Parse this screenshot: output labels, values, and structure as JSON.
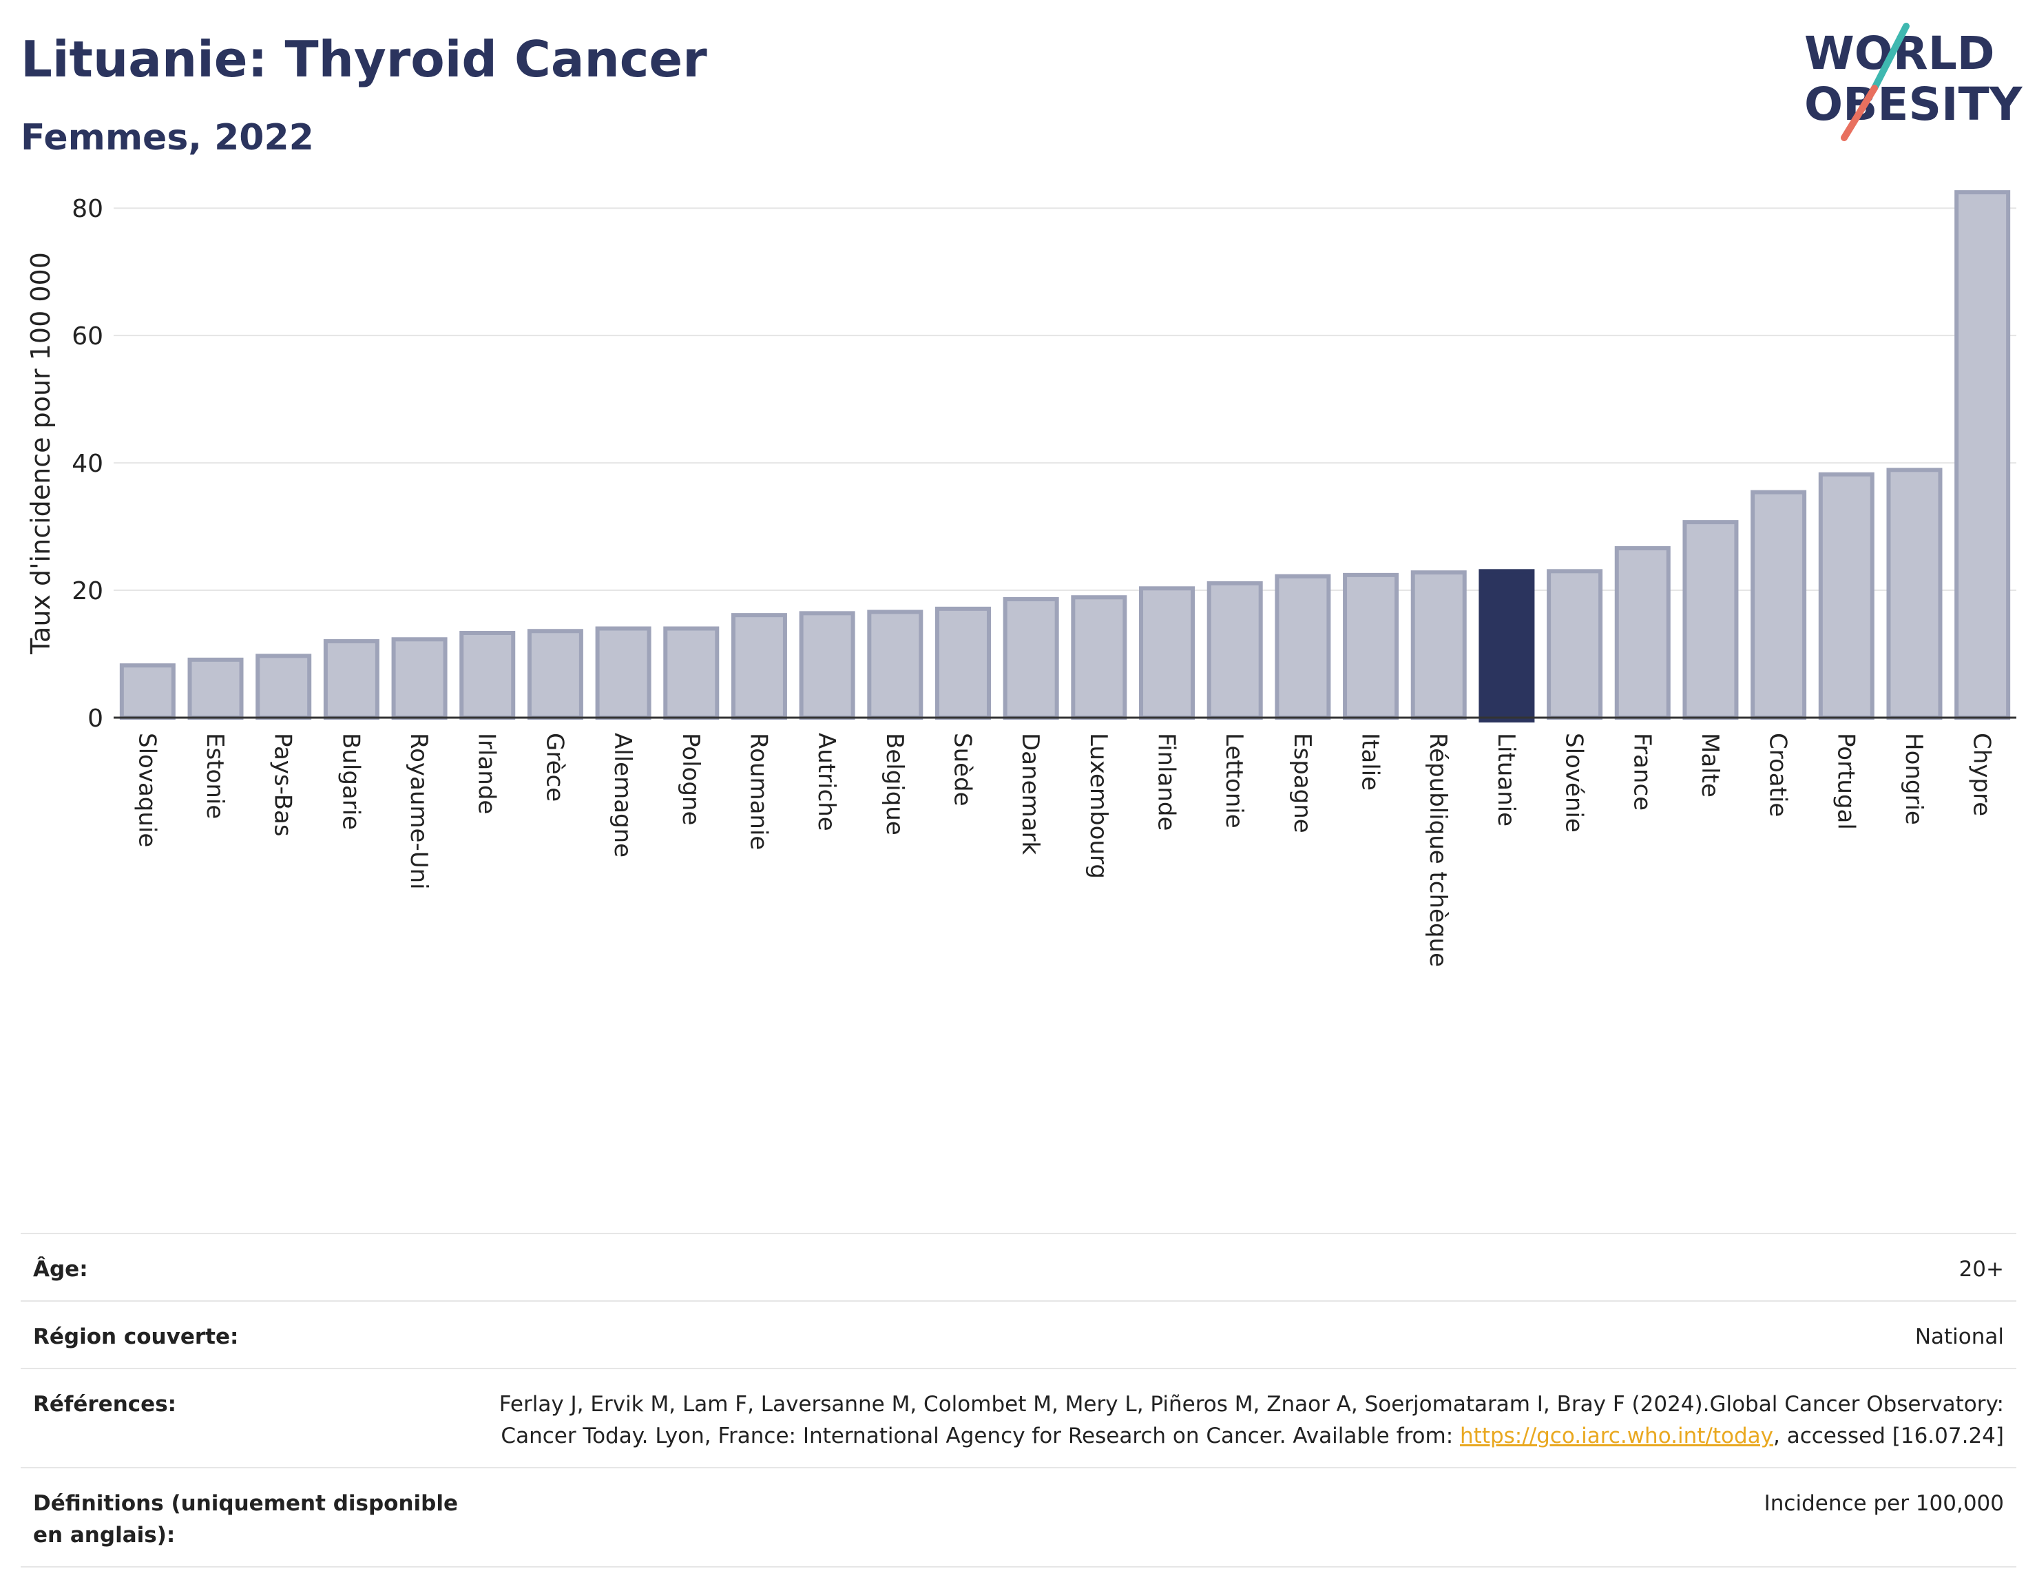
{
  "header": {
    "title": "Lituanie: Thyroid Cancer",
    "subtitle": "Femmes, 2022"
  },
  "logo": {
    "line1": "WORLD",
    "line2": "OBESITY",
    "accent_teal": "#3fb8b0",
    "accent_coral": "#e8705f",
    "text_color": "#2b345e"
  },
  "chart_data": {
    "type": "bar",
    "ylabel": "Taux d'incidence pour 100 000",
    "ylim": [
      0,
      85
    ],
    "yticks": [
      0,
      20,
      40,
      60,
      80
    ],
    "grid": true,
    "highlight": "Lituanie",
    "colors": {
      "bar": "#bfc2d0",
      "bar_border": "#9ea3b9",
      "highlight": "#2b345e",
      "axis": "#333333",
      "grid": "#e5e5e5"
    },
    "categories": [
      "Slovaquie",
      "Estonie",
      "Pays-Bas",
      "Bulgarie",
      "Royaume-Uni",
      "Irlande",
      "Grèce",
      "Allemagne",
      "Pologne",
      "Roumanie",
      "Autriche",
      "Belgique",
      "Suède",
      "Danemark",
      "Luxembourg",
      "Finlande",
      "Lettonie",
      "Espagne",
      "Italie",
      "République tchèque",
      "Lituanie",
      "Slovénie",
      "France",
      "Malte",
      "Croatie",
      "Portugal",
      "Hongrie",
      "Chypre"
    ],
    "values": [
      8.2,
      9.1,
      9.7,
      12.0,
      12.3,
      13.3,
      13.6,
      14.0,
      14.0,
      16.1,
      16.4,
      16.6,
      17.1,
      18.6,
      18.9,
      20.3,
      21.1,
      22.2,
      22.4,
      22.8,
      23.0,
      23.0,
      26.6,
      30.7,
      35.4,
      38.2,
      38.9,
      82.5
    ]
  },
  "info": {
    "age_label": "Âge:",
    "age_value": "20+",
    "region_label": "Région couverte:",
    "region_value": "National",
    "references_label": "Références:",
    "references_text": "Ferlay J, Ervik M, Lam F, Laversanne M, Colombet M, Mery L, Piñeros M, Znaor A, Soerjomataram I, Bray F (2024).Global Cancer Observatory: Cancer Today. Lyon, France: International Agency for Research on Cancer. Available from: ",
    "references_link": "https://gco.iarc.who.int/today",
    "references_suffix": ", accessed [16.07.24]",
    "definitions_label": "Définitions (uniquement disponible en anglais):",
    "definitions_value": "Incidence per 100,000"
  }
}
